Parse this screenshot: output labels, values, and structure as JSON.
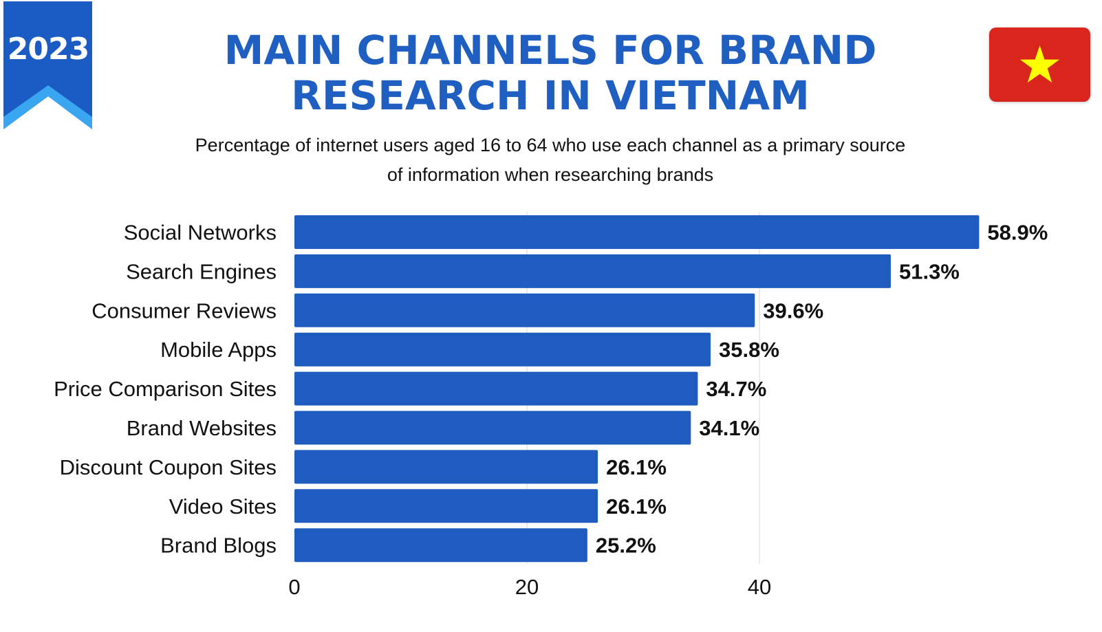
{
  "badge": {
    "year": "2023"
  },
  "header": {
    "title_line1": "MAIN CHANNELS FOR BRAND",
    "title_line2": "RESEARCH IN VIETNAM",
    "subtitle_line1": "Percentage of internet users aged 16 to 64 who use each channel as a primary source",
    "subtitle_line2": "of information when researching brands",
    "flag_icon": "vietnam-flag-icon"
  },
  "colors": {
    "bar": "#1f5cbf",
    "title": "#1f5fc2",
    "ribbon": "#1a5cc4",
    "ribbon_chevron": "#3aa5f0",
    "flag_red": "#da251d",
    "flag_star": "#ffff00",
    "grid": "#dddddd"
  },
  "chart_data": {
    "type": "bar",
    "orientation": "horizontal",
    "title": "MAIN CHANNELS FOR BRAND RESEARCH IN VIETNAM",
    "subtitle": "Percentage of internet users aged 16 to 64 who use each channel as a primary source of information when researching brands",
    "categories": [
      "Social Networks",
      "Search Engines",
      "Consumer Reviews",
      "Mobile Apps",
      "Price Comparison Sites",
      "Brand Websites",
      "Discount Coupon Sites",
      "Video Sites",
      "Brand Blogs"
    ],
    "values": [
      58.9,
      51.3,
      39.6,
      35.8,
      34.7,
      34.1,
      26.1,
      26.1,
      25.2
    ],
    "value_labels": [
      "58.9%",
      "51.3%",
      "39.6%",
      "35.8%",
      "34.7%",
      "34.1%",
      "26.1%",
      "26.1%",
      "25.2%"
    ],
    "xticks": [
      0,
      20,
      40
    ],
    "xtick_labels": [
      "0",
      "20",
      "40"
    ],
    "xlim": [
      0,
      60
    ],
    "xlabel": "",
    "ylabel": "",
    "grid": true
  }
}
